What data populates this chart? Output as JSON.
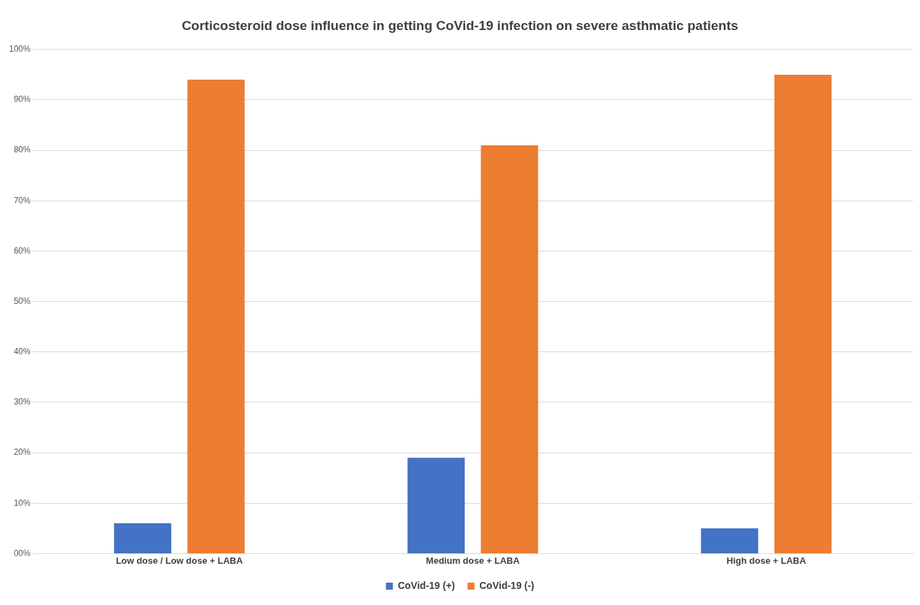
{
  "chart_data": {
    "type": "bar",
    "title": "Corticosteroid dose influence in getting CoVid-19 infection on severe asthmatic patients",
    "categories": [
      "Low dose / Low dose + LABA",
      "Medium dose + LABA",
      "High dose + LABA"
    ],
    "series": [
      {
        "name": "CoVid-19 (+)",
        "color": "#4472c4",
        "values": [
          6,
          19,
          5
        ]
      },
      {
        "name": "CoVid-19 (-)",
        "color": "#ed7d31",
        "values": [
          94,
          81,
          95
        ]
      }
    ],
    "ylim": [
      0,
      100
    ],
    "yticks": [
      {
        "value": 0,
        "label": "00%"
      },
      {
        "value": 10,
        "label": "10%"
      },
      {
        "value": 20,
        "label": "20%"
      },
      {
        "value": 30,
        "label": "30%"
      },
      {
        "value": 40,
        "label": "40%"
      },
      {
        "value": 50,
        "label": "50%"
      },
      {
        "value": 60,
        "label": "60%"
      },
      {
        "value": 70,
        "label": "70%"
      },
      {
        "value": 80,
        "label": "80%"
      },
      {
        "value": 90,
        "label": "90%"
      },
      {
        "value": 100,
        "label": "100%"
      }
    ],
    "grid": "y",
    "legend": "bottom"
  }
}
